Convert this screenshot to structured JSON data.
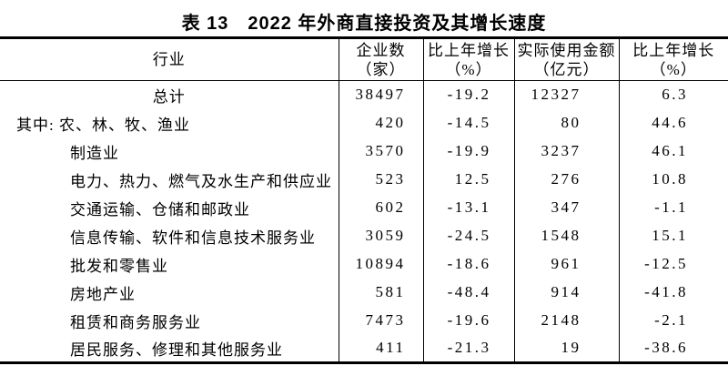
{
  "title": "表 13　2022 年外商直接投资及其增长速度",
  "table": {
    "columns": [
      {
        "line1": "行业",
        "line2": ""
      },
      {
        "line1": "企业数",
        "line2": "（家）"
      },
      {
        "line1": "比上年增长",
        "line2": "（%）"
      },
      {
        "line1": "实际使用金额",
        "line2": "（亿元）"
      },
      {
        "line1": "比上年增长",
        "line2": "（%）"
      }
    ],
    "rows": [
      {
        "industry": "总计",
        "enterprises": "38497",
        "growth_enterprises": "-19.2",
        "amount": "12327",
        "growth_amount": "6.3"
      },
      {
        "industry": "其中: 农、林、牧、渔业",
        "enterprises": "420",
        "growth_enterprises": "-14.5",
        "amount": "80",
        "growth_amount": "44.6"
      },
      {
        "industry": "制造业",
        "enterprises": "3570",
        "growth_enterprises": "-19.9",
        "amount": "3237",
        "growth_amount": "46.1"
      },
      {
        "industry": "电力、热力、燃气及水生产和供应业",
        "enterprises": "523",
        "growth_enterprises": "12.5",
        "amount": "276",
        "growth_amount": "10.8"
      },
      {
        "industry": "交通运输、仓储和邮政业",
        "enterprises": "602",
        "growth_enterprises": "-13.1",
        "amount": "347",
        "growth_amount": "-1.1"
      },
      {
        "industry": "信息传输、软件和信息技术服务业",
        "enterprises": "3059",
        "growth_enterprises": "-24.5",
        "amount": "1548",
        "growth_amount": "15.1"
      },
      {
        "industry": "批发和零售业",
        "enterprises": "10894",
        "growth_enterprises": "-18.6",
        "amount": "961",
        "growth_amount": "-12.5"
      },
      {
        "industry": "房地产业",
        "enterprises": "581",
        "growth_enterprises": "-48.4",
        "amount": "914",
        "growth_amount": "-41.8"
      },
      {
        "industry": "租赁和商务服务业",
        "enterprises": "7473",
        "growth_enterprises": "-19.6",
        "amount": "2148",
        "growth_amount": "-2.1"
      },
      {
        "industry": "居民服务、修理和其他服务业",
        "enterprises": "411",
        "growth_enterprises": "-21.3",
        "amount": "19",
        "growth_amount": "-38.6"
      }
    ]
  }
}
